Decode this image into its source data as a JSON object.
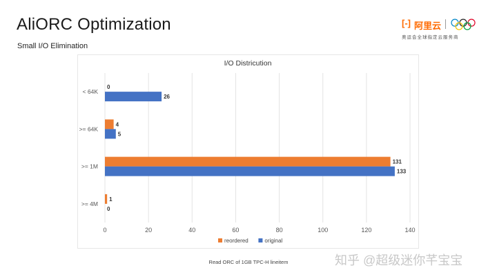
{
  "slide": {
    "title": "AliORC Optimization",
    "subtitle": "Small I/O Elimination",
    "footer_note": "Read ORC of 1GB TPC-H lineitem"
  },
  "logo": {
    "mark": "[-]",
    "brand": "阿里云",
    "partner_text": "奥运会全球指定云服务商",
    "accent_color": "#ff6a00"
  },
  "watermark": "知乎 @超级迷你芊宝宝",
  "chart_data": {
    "type": "bar",
    "orientation": "horizontal",
    "title": "I/O Districution",
    "categories": [
      "< 64K",
      ">= 64K",
      ">= 1M",
      ">= 4M"
    ],
    "series": [
      {
        "name": "reordered",
        "color": "#ed7d31",
        "values": [
          0,
          4,
          131,
          1
        ]
      },
      {
        "name": "original",
        "color": "#4472c4",
        "values": [
          26,
          5,
          133,
          0
        ]
      }
    ],
    "xlim": [
      0,
      140
    ],
    "xticks": [
      0,
      20,
      40,
      60,
      80,
      100,
      120,
      140
    ],
    "grid": true,
    "legend_position": "bottom"
  }
}
